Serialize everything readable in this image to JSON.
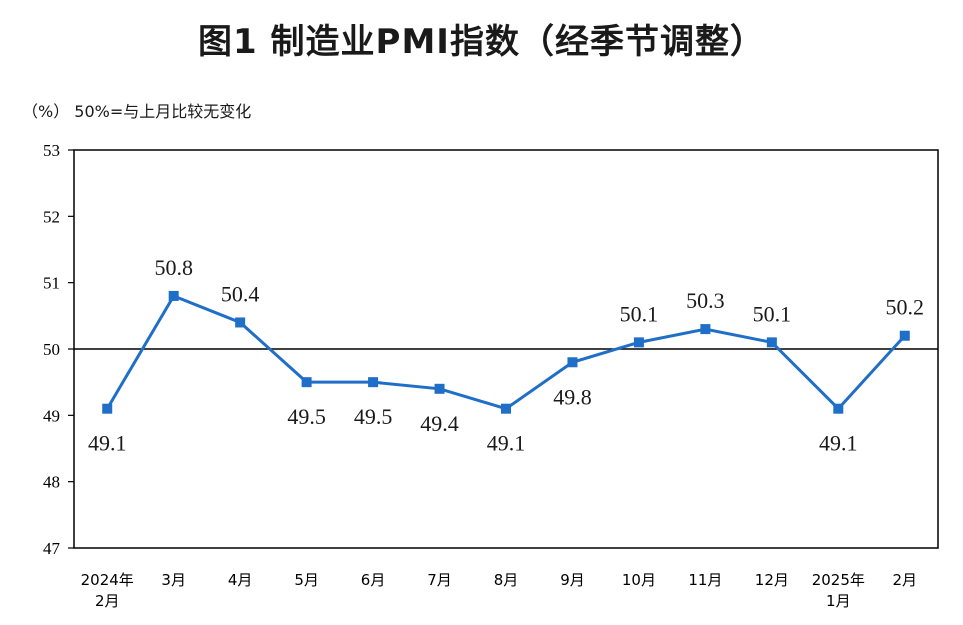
{
  "title": "图1  制造业PMI指数（经季节调整）",
  "unit_note": "（%）  50%=与上月比较无变化",
  "colors": {
    "line": "#1f6fc8",
    "axis": "#000000",
    "text": "#1a1a1a"
  },
  "chart_data": {
    "type": "line",
    "title": "图1  制造业PMI指数（经季节调整）",
    "ylabel": "（%）",
    "reference_line": 50,
    "ylim": [
      47,
      53
    ],
    "yticks": [
      "47",
      "48",
      "49",
      "50",
      "51",
      "52",
      "53"
    ],
    "categories": [
      [
        "2024年",
        "2月"
      ],
      [
        "3月"
      ],
      [
        "4月"
      ],
      [
        "5月"
      ],
      [
        "6月"
      ],
      [
        "7月"
      ],
      [
        "8月"
      ],
      [
        "9月"
      ],
      [
        "10月"
      ],
      [
        "11月"
      ],
      [
        "12月"
      ],
      [
        "2025年",
        "1月"
      ],
      [
        "2月"
      ]
    ],
    "values": [
      49.1,
      50.8,
      50.4,
      49.5,
      49.5,
      49.4,
      49.1,
      49.8,
      50.1,
      50.3,
      50.1,
      49.1,
      50.2
    ],
    "value_labels": [
      "49.1",
      "50.8",
      "50.4",
      "49.5",
      "49.5",
      "49.4",
      "49.1",
      "49.8",
      "50.1",
      "50.3",
      "50.1",
      "49.1",
      "50.2"
    ],
    "label_position": [
      "below",
      "above",
      "above",
      "below",
      "below",
      "below",
      "below",
      "below",
      "above",
      "above",
      "above",
      "below",
      "above"
    ]
  }
}
